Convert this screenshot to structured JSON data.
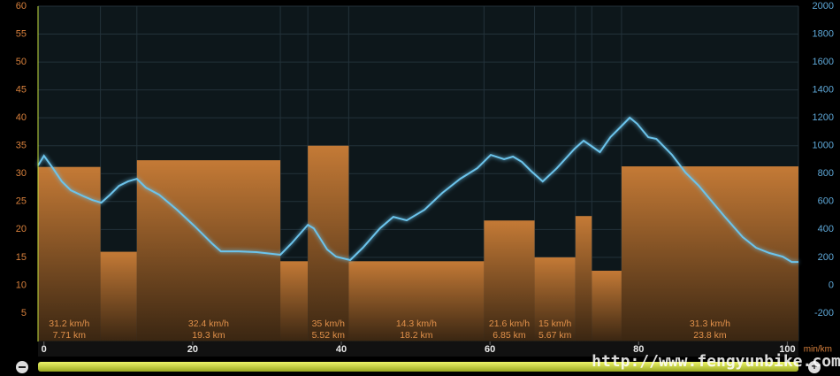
{
  "chart_data": {
    "type": "histogram",
    "bins": [
      -0.8,
      7.6,
      12.5,
      31.8,
      35.5,
      41.0,
      59.2,
      66.0,
      71.5,
      73.7,
      77.7,
      101.5
    ],
    "values": [
      31.2,
      16,
      32.4,
      14.3,
      35,
      14.3,
      21.6,
      15,
      22.4,
      12.6,
      31.3
    ],
    "value_labels": [
      "31.2 km/h",
      null,
      "32.4 km/h",
      null,
      "35 km/h",
      "14.3 km/h",
      "21.6 km/h",
      "15 km/h",
      null,
      null,
      "31.3 km/h"
    ],
    "distance_labels": [
      "7.71 km",
      null,
      "19.3 km",
      null,
      "5.52 km",
      "18.2 km",
      "6.85 km",
      "5.67 km",
      null,
      null,
      "23.8 km"
    ],
    "color": "#c47a36",
    "line": {
      "color": "#6cc4ec",
      "axis": "y2",
      "x": [
        -0.8,
        0,
        1.2,
        2.4,
        3.6,
        5.4,
        6.5,
        7.7,
        8.9,
        10.1,
        11.3,
        12.5,
        13.7,
        15.5,
        17.9,
        20.2,
        22.6,
        23.8,
        26.2,
        28.6,
        31.8,
        33.3,
        35.5,
        36.3,
        38.1,
        39.3,
        41.2,
        42.9,
        45.2,
        47.0,
        48.8,
        51.2,
        53.6,
        56.0,
        58.3,
        60.1,
        61.9,
        63.1,
        64.3,
        65.5,
        67.1,
        69.0,
        71.4,
        72.6,
        73.8,
        74.8,
        76.2,
        77.4,
        78.8,
        79.8,
        81.3,
        82.4,
        84.5,
        86.3,
        88.1,
        89.9,
        91.7,
        94.0,
        95.8,
        97.6,
        99.4,
        100.6,
        101.5
      ],
      "values": [
        858,
        928,
        839,
        744,
        681,
        636,
        611,
        592,
        649,
        712,
        744,
        763,
        700,
        649,
        541,
        427,
        300,
        243,
        243,
        237,
        218,
        300,
        433,
        408,
        256,
        205,
        180,
        269,
        408,
        490,
        465,
        541,
        662,
        763,
        839,
        934,
        903,
        922,
        884,
        820,
        744,
        839,
        979,
        1036,
        992,
        954,
        1061,
        1125,
        1201,
        1157,
        1061,
        1049,
        934,
        808,
        712,
        598,
        484,
        345,
        269,
        231,
        205,
        167,
        167
      ]
    },
    "xlim": [
      -0.8,
      101.5
    ],
    "xticks": [
      0,
      20,
      40,
      60,
      80,
      100
    ],
    "x_label": "min/km",
    "ylim": [
      0,
      60
    ],
    "yticks": [
      5,
      10,
      15,
      20,
      25,
      30,
      35,
      40,
      45,
      50,
      55,
      60
    ],
    "y2lim": [
      -400,
      2000
    ],
    "y2ticks": [
      -200,
      0,
      200,
      400,
      600,
      800,
      1000,
      1200,
      1400,
      1600,
      1800,
      2000
    ],
    "grid": true,
    "watermark": "http://www.fengyunbike.com"
  }
}
